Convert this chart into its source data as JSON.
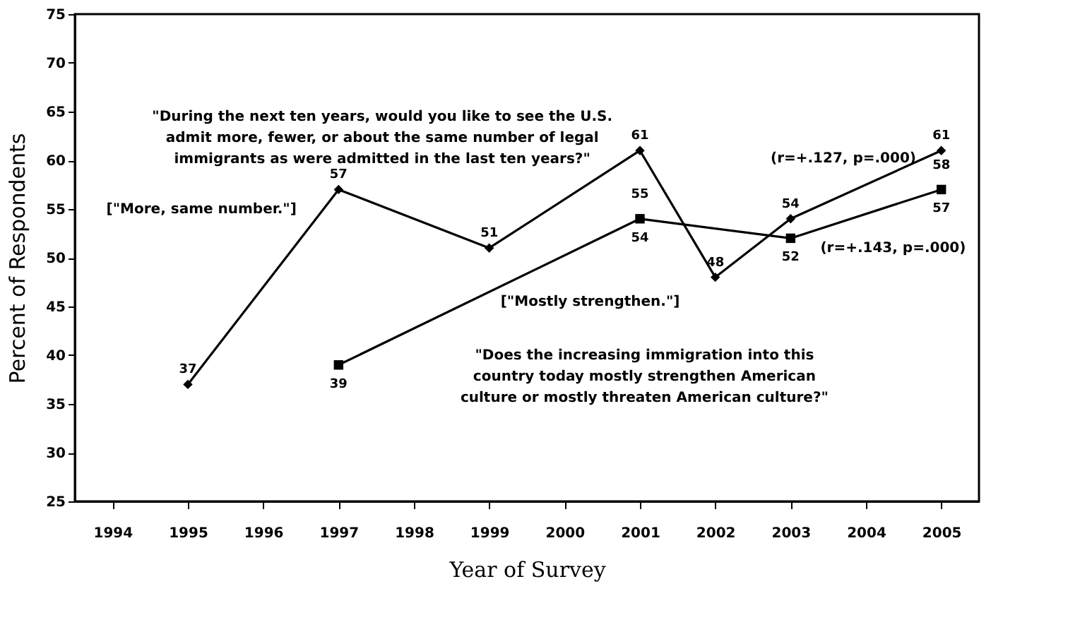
{
  "chart_data": {
    "type": "line",
    "xlabel": "Year of Survey",
    "ylabel": "Percent of Respondents",
    "categories": [
      "1994",
      "1995",
      "1996",
      "1997",
      "1998",
      "1999",
      "2000",
      "2001",
      "2002",
      "2003",
      "2004",
      "2005"
    ],
    "series": [
      {
        "name": "[\"More, same number.\"]",
        "color": "#000000",
        "marker": "diamond",
        "values": [
          null,
          37,
          null,
          57,
          null,
          51,
          null,
          61,
          48,
          54,
          null,
          61
        ]
      },
      {
        "name": "[\"Mostly strengthen.\"]",
        "color": "#000000",
        "marker": "square",
        "values": [
          null,
          null,
          null,
          39,
          null,
          null,
          null,
          54,
          null,
          52,
          null,
          57
        ]
      }
    ],
    "ylim": [
      25,
      75
    ],
    "yticks": [
      25,
      30,
      35,
      40,
      45,
      50,
      55,
      60,
      65,
      70,
      75
    ],
    "grid": false,
    "data_labels": true,
    "line_style": "solid",
    "annotations": [
      "\"During the next ten years, would you like to see the U.S.\nadmit more, fewer, or about the same number of legal\nimmigrants as were admitted in the last ten years?\"",
      "\"Does the increasing immigration into this\ncountry today mostly strengthen American\nculture or mostly threaten American culture?\"",
      "(r=+.127, p=.000)",
      "(r=+.143, p=.000)",
      {
        "text": "55",
        "x": "2001",
        "y": 55
      },
      {
        "text": "58",
        "x": "2005",
        "y": 58
      }
    ]
  }
}
